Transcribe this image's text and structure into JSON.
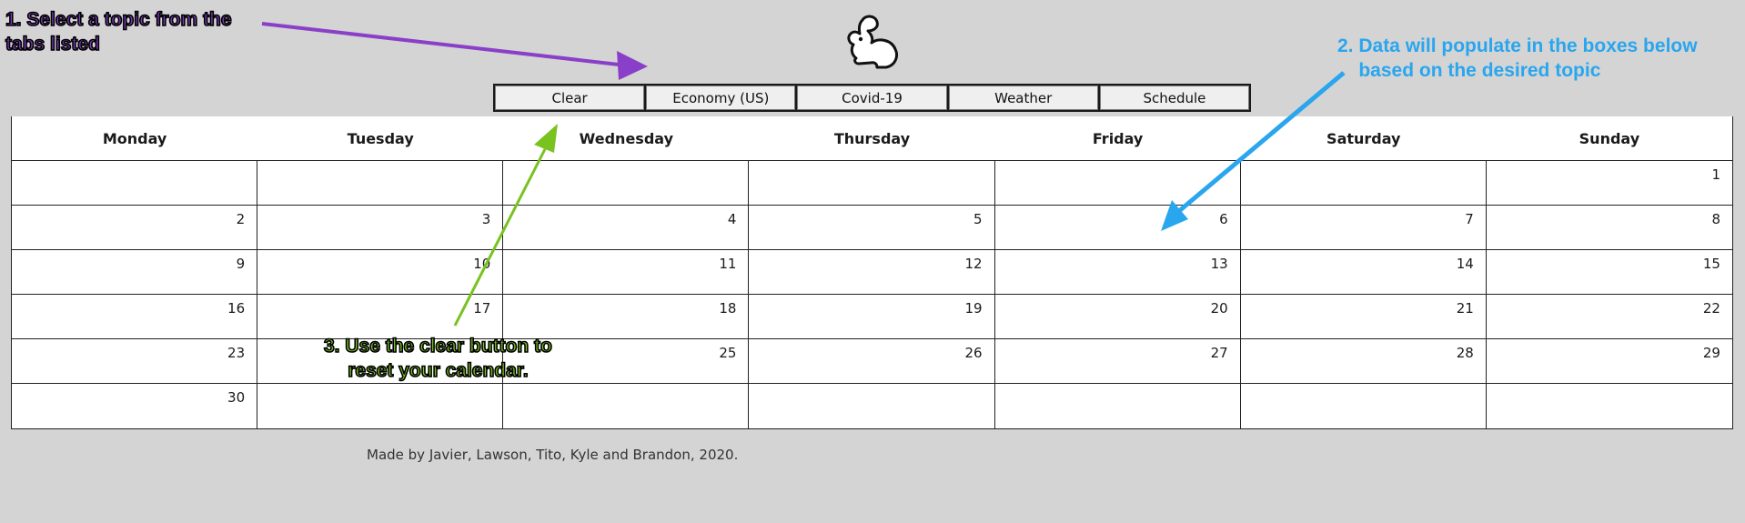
{
  "tabs": [
    {
      "label": "Clear"
    },
    {
      "label": "Economy (US)"
    },
    {
      "label": "Covid-19"
    },
    {
      "label": "Weather"
    },
    {
      "label": "Schedule"
    }
  ],
  "calendar": {
    "days": [
      "Monday",
      "Tuesday",
      "Wednesday",
      "Thursday",
      "Friday",
      "Saturday",
      "Sunday"
    ],
    "weeks": [
      [
        "",
        "",
        "",
        "",
        "",
        "",
        "1"
      ],
      [
        "2",
        "3",
        "4",
        "5",
        "6",
        "7",
        "8"
      ],
      [
        "9",
        "10",
        "11",
        "12",
        "13",
        "14",
        "15"
      ],
      [
        "16",
        "17",
        "18",
        "19",
        "20",
        "21",
        "22"
      ],
      [
        "23",
        "",
        "25",
        "26",
        "27",
        "28",
        "29"
      ],
      [
        "30",
        "",
        "",
        "",
        "",
        "",
        ""
      ]
    ]
  },
  "footer": {
    "credits": "Made by Javier, Lawson, Tito, Kyle and Brandon, 2020."
  },
  "annotations": {
    "step1": "1. Select a topic from the\ntabs listed",
    "step2": "2. Data will populate in the boxes below\n    based on the desired topic",
    "step3": "3. Use the clear button to\nreset your calendar."
  },
  "colors": {
    "step1": "#7d3cbf",
    "step2": "#29a6ee",
    "step3": "#79c21f"
  },
  "icons": {
    "logo": "rabbit-icon"
  }
}
